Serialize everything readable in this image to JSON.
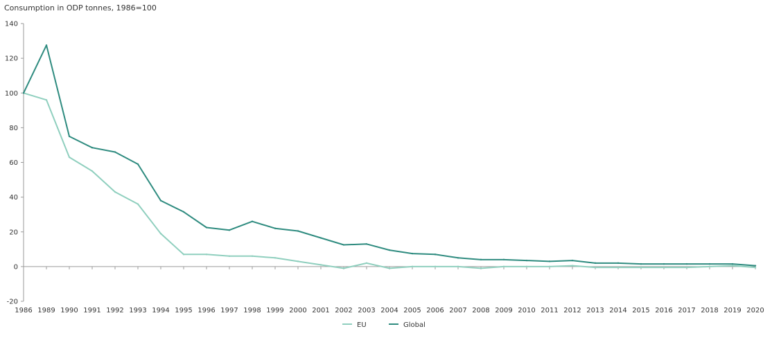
{
  "chart_data": {
    "type": "line",
    "title": "",
    "ylabel": "Consumption in ODP tonnes, 1986=100",
    "xlabel": "",
    "categories": [
      "1986",
      "1989",
      "1990",
      "1991",
      "1992",
      "1993",
      "1994",
      "1995",
      "1996",
      "1997",
      "1998",
      "1999",
      "2000",
      "2001",
      "2002",
      "2003",
      "2004",
      "2005",
      "2006",
      "2007",
      "2008",
      "2009",
      "2010",
      "2011",
      "2012",
      "2013",
      "2014",
      "2015",
      "2016",
      "2017",
      "2018",
      "2019",
      "2020"
    ],
    "y_ticks": [
      "-20",
      "0",
      "20",
      "40",
      "60",
      "80",
      "100",
      "120",
      "140"
    ],
    "ylim": [
      -20,
      140
    ],
    "grid": false,
    "legend_position": "bottom-center",
    "series": [
      {
        "name": "EU",
        "color": "#8fcfbe",
        "values": [
          100,
          96,
          63,
          55,
          43,
          36,
          19,
          7,
          7,
          6,
          6,
          5,
          3,
          1,
          -1,
          2,
          -1,
          0,
          0,
          0,
          -1,
          0,
          0,
          0,
          0.5,
          -0.5,
          -0.5,
          -0.5,
          -0.5,
          -0.5,
          0,
          0.5,
          -0.5
        ]
      },
      {
        "name": "Global",
        "color": "#2e8b7f",
        "values": [
          100,
          127.5,
          75,
          68.5,
          66,
          59,
          38,
          31.5,
          22.5,
          21,
          26,
          22,
          20.5,
          16.5,
          12.5,
          13,
          9.5,
          7.5,
          7,
          5,
          4,
          4,
          3.5,
          3,
          3.5,
          2,
          2,
          1.5,
          1.5,
          1.5,
          1.5,
          1.5,
          0.5
        ]
      }
    ]
  }
}
